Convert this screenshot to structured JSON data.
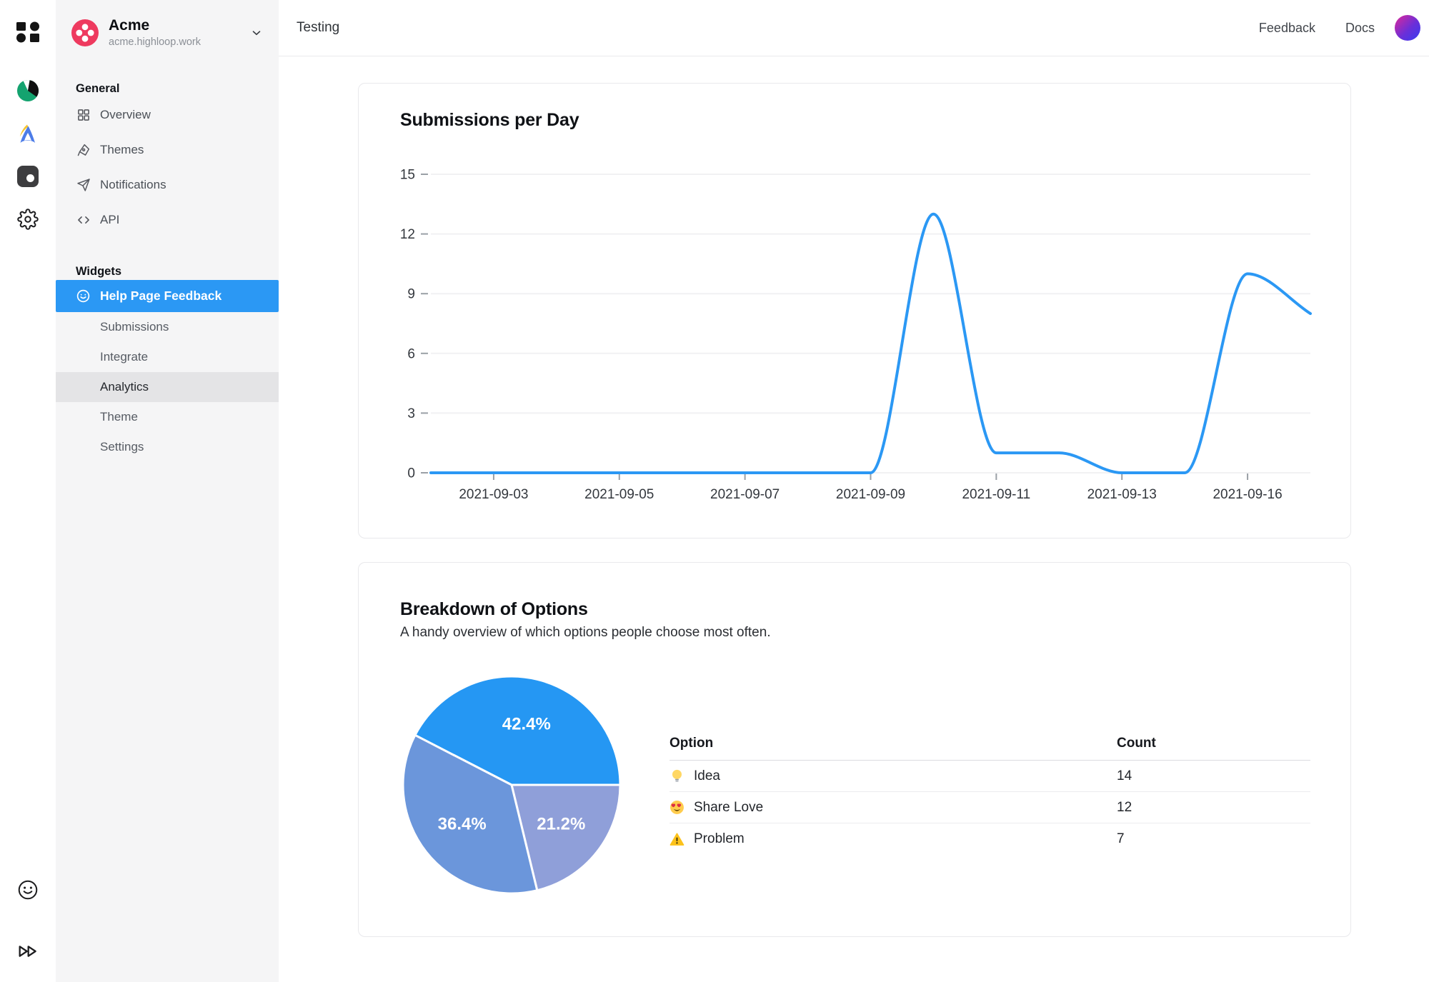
{
  "rail": {
    "icons_top": [
      "workspace-grid-logo",
      "green-pie-app",
      "arrow-app",
      "dark-square-app",
      "settings-gear"
    ],
    "icons_bottom": [
      "smiley",
      "fast-forward"
    ]
  },
  "workspace": {
    "name": "Acme",
    "domain": "acme.highloop.work"
  },
  "topbar": {
    "breadcrumb": "Testing",
    "links": {
      "feedback": "Feedback",
      "docs": "Docs"
    }
  },
  "sidebar": {
    "sections": [
      {
        "title": "General",
        "items": [
          {
            "label": "Overview",
            "icon": "grid-icon"
          },
          {
            "label": "Themes",
            "icon": "pen-nib-icon"
          },
          {
            "label": "Notifications",
            "icon": "paper-plane-icon"
          },
          {
            "label": "API",
            "icon": "code-icon"
          }
        ]
      },
      {
        "title": "Widgets",
        "items": [
          {
            "label": "Help Page Feedback",
            "icon": "smiley-icon",
            "selected": true
          }
        ],
        "children": [
          {
            "label": "Submissions"
          },
          {
            "label": "Integrate"
          },
          {
            "label": "Analytics",
            "highlighted": true
          },
          {
            "label": "Theme"
          },
          {
            "label": "Settings"
          }
        ]
      }
    ]
  },
  "chart_data": [
    {
      "type": "line",
      "title": "Submissions per Day",
      "x": [
        "2021-09-02",
        "2021-09-03",
        "2021-09-04",
        "2021-09-05",
        "2021-09-06",
        "2021-09-07",
        "2021-09-08",
        "2021-09-09",
        "2021-09-10",
        "2021-09-11",
        "2021-09-12",
        "2021-09-13",
        "2021-09-15",
        "2021-09-16",
        "2021-09-17"
      ],
      "values": [
        0,
        0,
        0,
        0,
        0,
        0,
        0,
        0,
        13,
        1,
        1,
        0,
        0,
        10,
        8
      ],
      "y_ticks": [
        0,
        3,
        6,
        9,
        12,
        15
      ],
      "ylim": [
        0,
        15
      ],
      "x_tick_indices": [
        1,
        3,
        5,
        7,
        9,
        11,
        13
      ],
      "line_color": "#2b98f4",
      "grid": true,
      "legend": "none"
    },
    {
      "type": "pie",
      "title": "Breakdown of Options",
      "subtitle": "A handy overview of which options people choose most often.",
      "slices": [
        {
          "label": "Idea",
          "count": 14,
          "percent": "42.4%",
          "color": "#2597f3"
        },
        {
          "label": "Problem",
          "count": 7,
          "percent": "21.2%",
          "color": "#8f9fd9"
        },
        {
          "label": "Share Love",
          "count": 12,
          "percent": "36.4%",
          "color": "#6b96db"
        }
      ],
      "label_color": "#ffffff",
      "table": {
        "headers": [
          "Option",
          "Count"
        ],
        "rows": [
          {
            "icon": "lightbulb-emoji",
            "label": "Idea",
            "count": "14"
          },
          {
            "icon": "heart-eyes-emoji",
            "label": "Share Love",
            "count": "12"
          },
          {
            "icon": "warning-emoji",
            "label": "Problem",
            "count": "7"
          }
        ]
      }
    }
  ]
}
